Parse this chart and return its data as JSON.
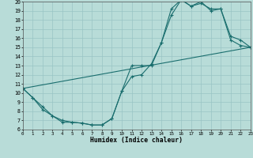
{
  "xlabel": "Humidex (Indice chaleur)",
  "xlim": [
    0,
    23
  ],
  "ylim": [
    6,
    20
  ],
  "xticks": [
    0,
    1,
    2,
    3,
    4,
    5,
    6,
    7,
    8,
    9,
    10,
    11,
    12,
    13,
    14,
    15,
    16,
    17,
    18,
    19,
    20,
    21,
    22,
    23
  ],
  "yticks": [
    6,
    7,
    8,
    9,
    10,
    11,
    12,
    13,
    14,
    15,
    16,
    17,
    18,
    19,
    20
  ],
  "bg_color": "#b8dcd8",
  "line_color": "#1a6e6e",
  "grid_color": "#99c4c4",
  "line1_x": [
    0,
    1,
    2,
    3,
    4,
    5,
    6,
    7,
    8,
    9,
    10,
    11,
    12,
    13,
    14,
    15,
    16,
    17,
    18,
    19,
    20,
    21,
    22,
    23
  ],
  "line1_y": [
    10.5,
    9.5,
    8.5,
    7.5,
    7.0,
    6.8,
    6.7,
    6.5,
    6.5,
    7.2,
    10.2,
    13.0,
    13.0,
    13.0,
    15.5,
    19.2,
    20.2,
    19.5,
    19.8,
    19.2,
    19.2,
    16.2,
    15.8,
    15.0
  ],
  "line2_x": [
    0,
    1,
    2,
    3,
    4,
    5,
    6,
    7,
    8,
    9,
    10,
    11,
    12,
    13,
    14,
    15,
    16,
    17,
    18,
    19,
    20,
    21,
    22,
    23
  ],
  "line2_y": [
    10.5,
    9.5,
    8.2,
    7.5,
    6.8,
    6.8,
    6.7,
    6.5,
    6.5,
    7.2,
    10.2,
    11.8,
    12.0,
    13.2,
    15.5,
    18.5,
    20.2,
    19.5,
    20.0,
    19.0,
    19.2,
    15.8,
    15.2,
    15.0
  ],
  "line3_x": [
    0,
    23
  ],
  "line3_y": [
    10.5,
    15.0
  ]
}
